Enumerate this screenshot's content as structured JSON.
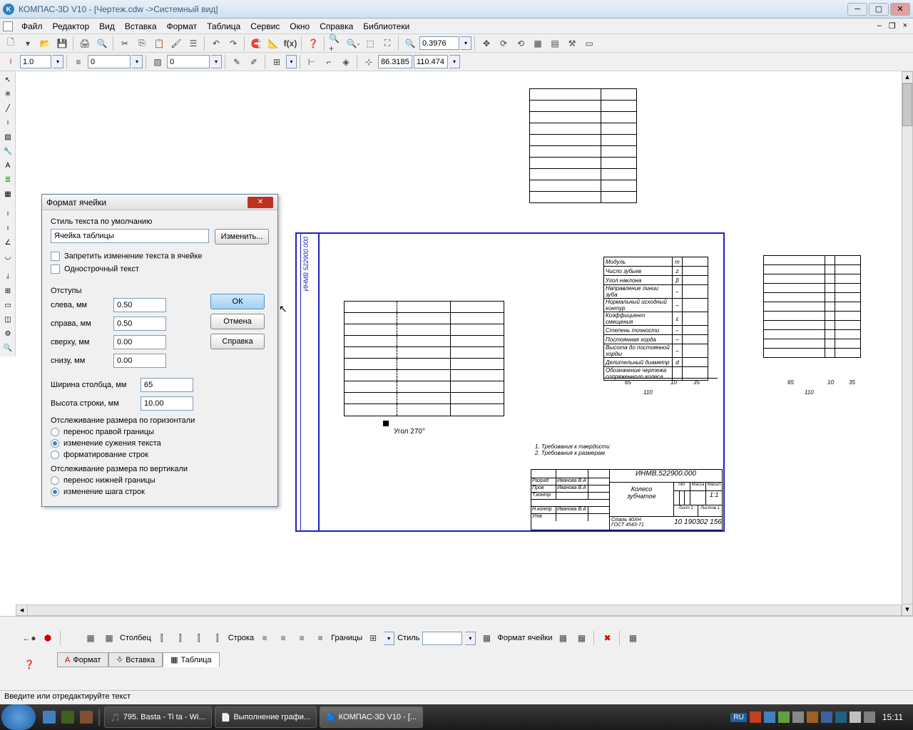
{
  "titlebar": {
    "title": "КОМПАС-3D V10 - [Чертеж.cdw ->Системный вид]"
  },
  "menubar": {
    "items": [
      "Файл",
      "Редактор",
      "Вид",
      "Вставка",
      "Формат",
      "Таблица",
      "Сервис",
      "Окно",
      "Справка",
      "Библиотеки"
    ]
  },
  "toolbar1": {
    "scale": "0.3976"
  },
  "toolbar2": {
    "thickness": "1.0",
    "layer1": "0",
    "layer2": "0",
    "coordX": "86.3185",
    "coordY": "110.474"
  },
  "dialog": {
    "title": "Формат ячейки",
    "style_label": "Стиль текста по умолчанию",
    "style_value": "Ячейка таблицы",
    "change_btn": "Изменить...",
    "cb1": "Запретить изменение текста в ячейке",
    "cb2": "Однострочный текст",
    "indents": "Отступы",
    "left_label": "слева, мм",
    "left_val": "0.50",
    "right_label": "справа, мм",
    "right_val": "0.50",
    "top_label": "сверху, мм",
    "top_val": "0.00",
    "bottom_label": "снизу, мм",
    "bottom_val": "0.00",
    "col_width_label": "Ширина столбца, мм",
    "col_width_val": "65",
    "row_height_label": "Высота строки, мм",
    "row_height_val": "10.00",
    "track_h": "Отслеживание размера по горизонтали",
    "rh1": "перенос правой границы",
    "rh2": "изменение сужения текста",
    "rh3": "форматирование строк",
    "track_v": "Отслеживание размера по вертикали",
    "rv1": "перенос нижней границы",
    "rv2": "изменение шага строк",
    "ok": "ОК",
    "cancel": "Отмена",
    "help": "Справка"
  },
  "drawing": {
    "angle_text": "Угол 270°",
    "rotated_text": "ИНМВ 522900 000",
    "req1": "1. Требования к твердости",
    "req2": "2. Требования к размерам",
    "params": [
      "Модуль",
      "Число зубьев",
      "Угол наклона",
      "Направление линии зуба",
      "Нормальный исходный контур",
      "Коэффициент смещения",
      "Степень точности",
      "Постоянная хорда",
      "Высота до постоянной хорды",
      "Делительный диаметр",
      "Обозначение чертежа сопряженного колеса"
    ],
    "param_syms": [
      "m",
      "z",
      "β",
      "–",
      "–",
      "ε",
      "–",
      "–",
      "–",
      "d",
      ""
    ],
    "dim65": "65",
    "dim10": "10",
    "dim35": "35",
    "dim110": "110",
    "tb_code": "ИНМВ.522900.000",
    "tb_name1": "Колесо",
    "tb_name2": "зубчатое",
    "tb_mat": "Сталь 40ХН\nГОСТ 4543-71",
    "tb_scale": "1:1",
    "tb_sheet": "10 190302 156",
    "tb_name": "Иванова В.А"
  },
  "bottom": {
    "col_label": "Столбец",
    "row_label": "Строка",
    "borders": "Границы",
    "style": "Стиль",
    "format_cell": "Формат ячейки",
    "tab1": "Формат",
    "tab2": "Вставка",
    "tab3": "Таблица"
  },
  "status": "Введите или отредактируйте текст",
  "taskbar": {
    "items": [
      "795. Basta - Ti ta - Wi...",
      "Выполнение графи...",
      "КОМПАС-3D V10 - [..."
    ],
    "lang": "RU",
    "time": "15:11"
  }
}
